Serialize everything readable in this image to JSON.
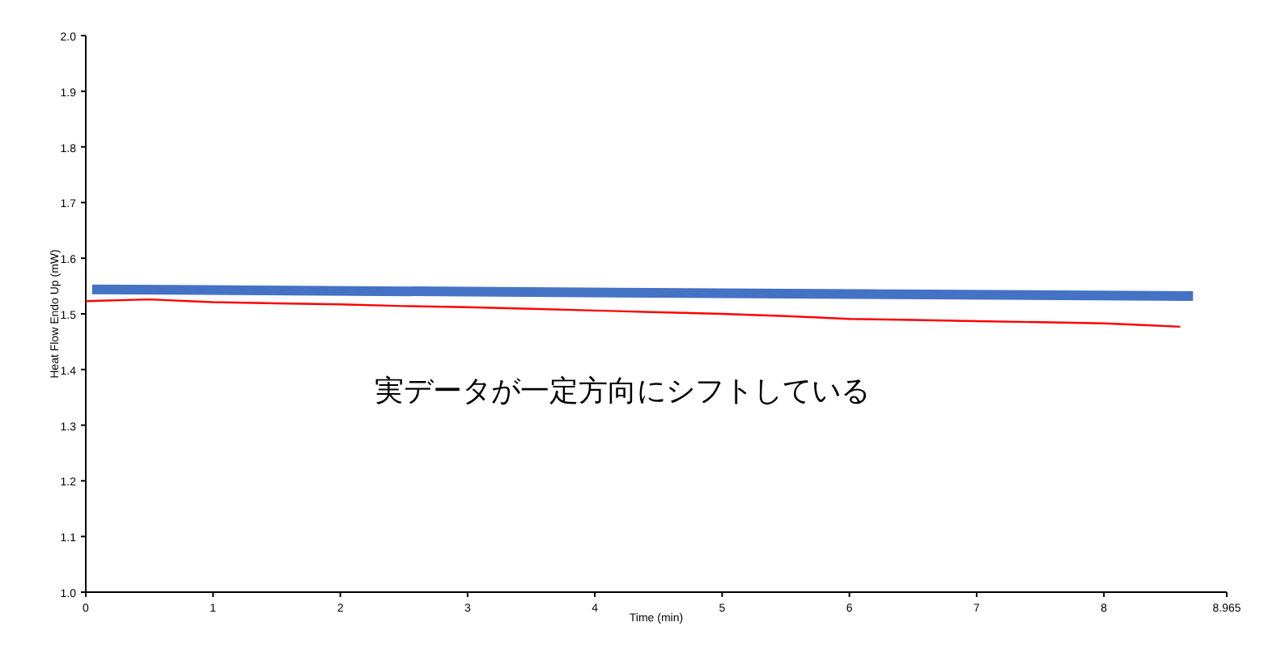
{
  "chart_data": {
    "type": "line",
    "xlabel": "Time (min)",
    "ylabel": "Heat Flow Endo Up (mW)",
    "annotations": [
      "実データが一定方向にシフトしている"
    ],
    "xlim": [
      0,
      8.965
    ],
    "xticks": [
      0,
      1,
      2,
      3,
      4,
      5,
      6,
      7,
      8,
      8.965
    ],
    "ylim": [
      1.0,
      2.0
    ],
    "yticks": [
      {
        "value": 1.0,
        "label": "1.0"
      },
      1.1,
      1.2,
      1.3,
      1.4,
      1.5,
      1.6,
      1.7,
      1.8,
      1.9,
      {
        "value": 2.0,
        "label": "2.0"
      }
    ],
    "series": [
      {
        "color": "#4472c4",
        "x": [
          0.05,
          8.7
        ],
        "values": [
          1.544,
          1.532
        ]
      },
      {
        "color": "#ff0000",
        "x": [
          0,
          0.5,
          1,
          1.5,
          2,
          2.5,
          3,
          3.5,
          4,
          4.5,
          5,
          5.5,
          6,
          6.5,
          7,
          7.5,
          8,
          8.3,
          8.6
        ],
        "values": [
          1.523,
          1.526,
          1.521,
          1.519,
          1.517,
          1.514,
          1.512,
          1.509,
          1.506,
          1.503,
          1.5,
          1.496,
          1.491,
          1.489,
          1.487,
          1.485,
          1.483,
          1.48,
          1.477
        ]
      }
    ]
  }
}
